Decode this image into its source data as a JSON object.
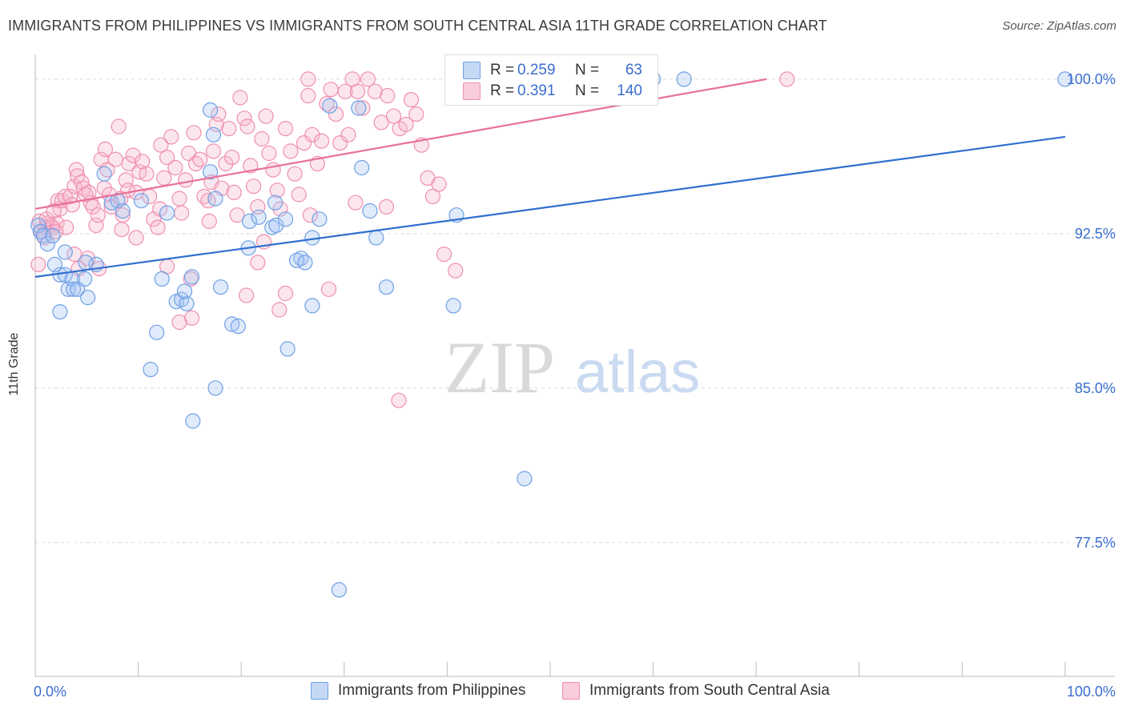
{
  "title": "IMMIGRANTS FROM PHILIPPINES VS IMMIGRANTS FROM SOUTH CENTRAL ASIA 11TH GRADE CORRELATION CHART",
  "source": "Source: ZipAtlas.com",
  "watermark": {
    "zip": "ZIP",
    "atlas": "atlas"
  },
  "legend": {
    "rows": [
      {
        "r_label": "R =",
        "r_value": "0.259",
        "n_label": "N =",
        "n_value": "63",
        "color": "#6fa0e6"
      },
      {
        "r_label": "R =",
        "r_value": "0.391",
        "n_label": "N =",
        "n_value": "140",
        "color": "#ef8fb0"
      }
    ]
  },
  "bottom_legend": [
    {
      "label": "Immigrants from Philippines",
      "color": "#6fa0e6"
    },
    {
      "label": "Immigrants from South Central Asia",
      "color": "#ef8fb0"
    }
  ],
  "chart_data": {
    "type": "scatter",
    "title": "IMMIGRANTS FROM PHILIPPINES VS IMMIGRANTS FROM SOUTH CENTRAL ASIA 11TH GRADE CORRELATION CHART",
    "xlabel": "",
    "ylabel": "11th Grade",
    "xlim": [
      0,
      100
    ],
    "ylim": [
      71,
      101.2
    ],
    "x_tick_labels": [
      "0.0%",
      "100.0%"
    ],
    "y_ticks": [
      77.5,
      85.0,
      92.5,
      100.0
    ],
    "y_tick_labels": [
      "77.5%",
      "85.0%",
      "92.5%",
      "100.0%"
    ],
    "grid": true,
    "legend_position": "top-center",
    "series": [
      {
        "name": "Immigrants from Philippines",
        "color": "#6fa0e6",
        "trend": {
          "x": [
            0,
            100
          ],
          "y": [
            90.4,
            97.2
          ]
        },
        "points": [
          [
            0.3,
            92.9
          ],
          [
            0.5,
            92.6
          ],
          [
            0.8,
            92.4
          ],
          [
            1.2,
            92.0
          ],
          [
            1.7,
            92.4
          ],
          [
            1.9,
            91.0
          ],
          [
            2.4,
            90.5
          ],
          [
            2.9,
            90.5
          ],
          [
            3.2,
            89.8
          ],
          [
            2.9,
            91.6
          ],
          [
            3.6,
            90.3
          ],
          [
            3.7,
            89.8
          ],
          [
            4.1,
            89.8
          ],
          [
            5.1,
            89.4
          ],
          [
            4.8,
            90.3
          ],
          [
            5.9,
            91.0
          ],
          [
            4.9,
            91.1
          ],
          [
            2.4,
            88.7
          ],
          [
            6.7,
            95.4
          ],
          [
            7.4,
            94.0
          ],
          [
            8.0,
            94.1
          ],
          [
            8.5,
            93.6
          ],
          [
            10.3,
            94.1
          ],
          [
            12.8,
            93.5
          ],
          [
            13.7,
            89.2
          ],
          [
            14.2,
            89.3
          ],
          [
            14.7,
            89.1
          ],
          [
            14.5,
            89.7
          ],
          [
            11.8,
            87.7
          ],
          [
            11.2,
            85.9
          ],
          [
            12.3,
            90.3
          ],
          [
            15.2,
            90.4
          ],
          [
            15.3,
            83.4
          ],
          [
            17.0,
            95.5
          ],
          [
            17.0,
            98.5
          ],
          [
            17.3,
            97.3
          ],
          [
            17.5,
            94.2
          ],
          [
            18.0,
            89.9
          ],
          [
            19.1,
            88.1
          ],
          [
            19.7,
            88.0
          ],
          [
            20.8,
            93.1
          ],
          [
            20.7,
            91.8
          ],
          [
            21.7,
            93.3
          ],
          [
            23.3,
            94.0
          ],
          [
            23.0,
            92.8
          ],
          [
            23.4,
            92.9
          ],
          [
            24.3,
            93.2
          ],
          [
            26.9,
            92.3
          ],
          [
            25.8,
            91.3
          ],
          [
            25.4,
            91.2
          ],
          [
            26.2,
            91.1
          ],
          [
            24.5,
            86.9
          ],
          [
            27.6,
            93.2
          ],
          [
            26.9,
            89.0
          ],
          [
            28.6,
            98.7
          ],
          [
            31.4,
            98.6
          ],
          [
            31.7,
            95.7
          ],
          [
            32.5,
            93.6
          ],
          [
            33.1,
            92.3
          ],
          [
            34.1,
            89.9
          ],
          [
            40.9,
            93.4
          ],
          [
            40.6,
            89.0
          ],
          [
            47.5,
            80.6
          ],
          [
            29.5,
            75.2
          ],
          [
            60.0,
            100.0
          ],
          [
            63.0,
            100.0
          ],
          [
            100.0,
            100.0
          ],
          [
            17.5,
            85.0
          ]
        ]
      },
      {
        "name": "Immigrants from South Central Asia",
        "color": "#ef8fb0",
        "trend": {
          "x": [
            0,
            71
          ],
          "y": [
            93.7,
            100.0
          ]
        },
        "points": [
          [
            0.3,
            91.0
          ],
          [
            0.6,
            92.6
          ],
          [
            1.0,
            92.8
          ],
          [
            1.2,
            93.0
          ],
          [
            1.5,
            92.9
          ],
          [
            1.7,
            92.8
          ],
          [
            2.1,
            93.0
          ],
          [
            2.2,
            94.1
          ],
          [
            2.4,
            93.7
          ],
          [
            2.6,
            94.1
          ],
          [
            2.9,
            94.3
          ],
          [
            3.0,
            92.8
          ],
          [
            3.4,
            94.3
          ],
          [
            3.6,
            93.9
          ],
          [
            3.8,
            94.8
          ],
          [
            4.0,
            95.6
          ],
          [
            4.1,
            95.3
          ],
          [
            4.5,
            95.0
          ],
          [
            4.7,
            94.7
          ],
          [
            4.9,
            94.4
          ],
          [
            5.2,
            94.5
          ],
          [
            5.4,
            94.0
          ],
          [
            5.6,
            93.8
          ],
          [
            5.9,
            92.9
          ],
          [
            6.1,
            93.4
          ],
          [
            6.4,
            96.1
          ],
          [
            6.7,
            94.7
          ],
          [
            6.8,
            96.6
          ],
          [
            7.0,
            95.6
          ],
          [
            7.2,
            94.4
          ],
          [
            7.4,
            93.8
          ],
          [
            7.8,
            96.1
          ],
          [
            8.1,
            97.7
          ],
          [
            8.3,
            94.2
          ],
          [
            8.5,
            93.4
          ],
          [
            8.8,
            95.1
          ],
          [
            9.0,
            94.6
          ],
          [
            9.1,
            95.9
          ],
          [
            9.5,
            96.3
          ],
          [
            9.8,
            94.5
          ],
          [
            10.1,
            95.5
          ],
          [
            10.4,
            96.0
          ],
          [
            10.8,
            95.4
          ],
          [
            11.1,
            94.3
          ],
          [
            11.5,
            93.2
          ],
          [
            11.9,
            92.8
          ],
          [
            12.2,
            96.8
          ],
          [
            12.5,
            95.2
          ],
          [
            12.8,
            96.2
          ],
          [
            13.2,
            97.2
          ],
          [
            13.6,
            95.7
          ],
          [
            14.0,
            94.2
          ],
          [
            14.2,
            93.5
          ],
          [
            14.6,
            95.1
          ],
          [
            14.9,
            96.4
          ],
          [
            15.4,
            97.4
          ],
          [
            15.6,
            95.9
          ],
          [
            16.0,
            96.1
          ],
          [
            16.4,
            94.3
          ],
          [
            16.8,
            94.1
          ],
          [
            17.1,
            95.0
          ],
          [
            17.3,
            96.5
          ],
          [
            17.6,
            97.8
          ],
          [
            17.8,
            98.3
          ],
          [
            18.1,
            94.7
          ],
          [
            18.5,
            95.9
          ],
          [
            18.8,
            97.6
          ],
          [
            19.1,
            96.2
          ],
          [
            19.3,
            94.5
          ],
          [
            19.6,
            93.4
          ],
          [
            19.9,
            99.1
          ],
          [
            20.3,
            98.1
          ],
          [
            20.6,
            97.7
          ],
          [
            20.9,
            95.8
          ],
          [
            21.2,
            94.8
          ],
          [
            21.6,
            93.8
          ],
          [
            22.0,
            97.1
          ],
          [
            22.4,
            98.2
          ],
          [
            22.7,
            96.4
          ],
          [
            23.1,
            95.6
          ],
          [
            23.5,
            94.6
          ],
          [
            23.8,
            93.7
          ],
          [
            24.3,
            97.6
          ],
          [
            24.8,
            96.5
          ],
          [
            25.2,
            95.4
          ],
          [
            25.6,
            94.4
          ],
          [
            26.1,
            96.9
          ],
          [
            26.5,
            99.2
          ],
          [
            26.9,
            97.3
          ],
          [
            27.4,
            95.9
          ],
          [
            27.8,
            97.0
          ],
          [
            28.3,
            98.8
          ],
          [
            28.7,
            99.5
          ],
          [
            29.2,
            98.3
          ],
          [
            29.6,
            96.9
          ],
          [
            30.1,
            99.4
          ],
          [
            30.4,
            97.3
          ],
          [
            30.8,
            100.0
          ],
          [
            31.3,
            99.4
          ],
          [
            31.8,
            98.6
          ],
          [
            32.3,
            100.0
          ],
          [
            33.0,
            99.4
          ],
          [
            33.6,
            97.9
          ],
          [
            34.2,
            99.2
          ],
          [
            34.8,
            98.2
          ],
          [
            35.4,
            97.6
          ],
          [
            36.0,
            97.8
          ],
          [
            36.5,
            99.0
          ],
          [
            37.0,
            98.3
          ],
          [
            37.5,
            96.8
          ],
          [
            38.1,
            95.2
          ],
          [
            38.6,
            94.3
          ],
          [
            39.2,
            94.9
          ],
          [
            39.7,
            91.5
          ],
          [
            40.8,
            90.7
          ],
          [
            35.3,
            84.4
          ],
          [
            3.8,
            91.5
          ],
          [
            4.2,
            90.8
          ],
          [
            15.1,
            90.3
          ],
          [
            12.8,
            90.9
          ],
          [
            15.2,
            88.4
          ],
          [
            20.5,
            89.5
          ],
          [
            24.3,
            89.6
          ],
          [
            23.7,
            88.8
          ],
          [
            28.5,
            89.8
          ],
          [
            34.1,
            93.8
          ],
          [
            22.2,
            92.1
          ],
          [
            14.0,
            88.2
          ],
          [
            12.1,
            93.7
          ],
          [
            0.9,
            92.3
          ],
          [
            2.0,
            92.6
          ],
          [
            0.4,
            93.1
          ],
          [
            1.1,
            93.2
          ],
          [
            1.8,
            93.6
          ],
          [
            6.2,
            90.8
          ],
          [
            9.8,
            92.3
          ],
          [
            8.4,
            92.7
          ],
          [
            5.1,
            91.3
          ],
          [
            16.9,
            93.1
          ],
          [
            21.6,
            91.1
          ],
          [
            26.7,
            93.4
          ],
          [
            31.1,
            94.0
          ],
          [
            73.0,
            100.0
          ],
          [
            26.5,
            100.0
          ]
        ]
      }
    ]
  }
}
